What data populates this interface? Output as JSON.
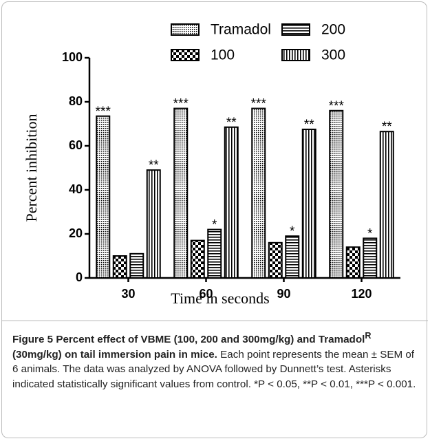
{
  "chart_data": {
    "type": "bar",
    "xlabel": "Time in seconds",
    "ylabel": "Percent  inhibition",
    "categories": [
      "30",
      "60",
      "90",
      "120"
    ],
    "series": [
      {
        "name": "Tramadol",
        "color": "#000000",
        "pattern": "dots",
        "values": [
          73.5,
          77,
          77,
          76
        ],
        "annotations": [
          "***",
          "***",
          "***",
          "***"
        ]
      },
      {
        "name": "100",
        "color": "#000000",
        "pattern": "checker",
        "values": [
          10,
          17,
          16,
          14
        ],
        "annotations": [
          null,
          null,
          null,
          null
        ]
      },
      {
        "name": "200",
        "color": "#000000",
        "pattern": "hlines",
        "values": [
          11,
          22,
          19,
          18
        ],
        "annotations": [
          null,
          "*",
          "*",
          "*"
        ]
      },
      {
        "name": "300",
        "color": "#000000",
        "pattern": "vlines",
        "values": [
          49,
          68.5,
          67.5,
          66.5
        ],
        "annotations": [
          "**",
          "**",
          "**",
          "**"
        ]
      }
    ],
    "ylim": [
      0,
      100
    ],
    "yticks": [
      0,
      20,
      40,
      60,
      80,
      100
    ],
    "grid": false,
    "legend": "top"
  },
  "caption": {
    "label": "Figure 5",
    "title": "Percent effect of VBME (100, 200 and 300mg/kg) and Tramadol",
    "title_sup": "R",
    "title_end": "(30mg/kg) on tail immersion pain in mice.",
    "text": "Each point represents the mean ± SEM of 6 animals. The data was analyzed by ANOVA followed by Dunnett’s test. Asterisks indicated statistically significant values from control. *P < 0.05, **P < 0.01, ***P < 0.001."
  }
}
